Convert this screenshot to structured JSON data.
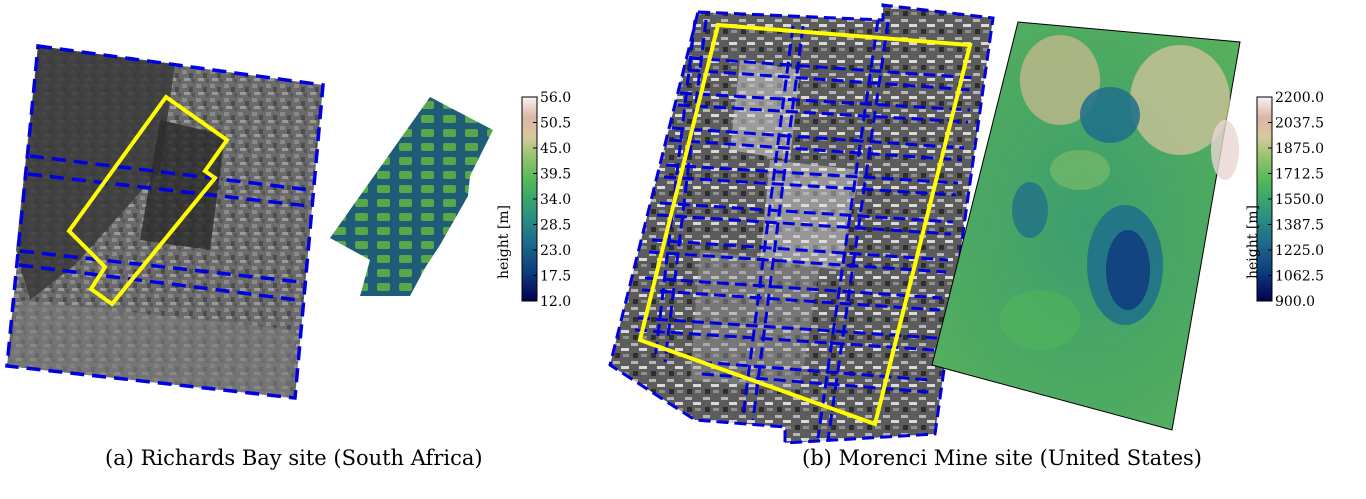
{
  "captions": {
    "a": "(a) Richards Bay site (South Africa)",
    "b": "(b) Morenci Mine site (United States)"
  },
  "colorbar_a": {
    "label": "height  [m]",
    "ticks": [
      "56.0",
      "50.5",
      "45.0",
      "39.5",
      "34.0",
      "28.5",
      "23.0",
      "17.5",
      "12.0"
    ],
    "range": [
      12.0,
      56.0
    ]
  },
  "colorbar_b": {
    "label": "height  [m]",
    "ticks": [
      "2200.0",
      "2037.5",
      "1875.0",
      "1712.5",
      "1550.0",
      "1387.5",
      "1225.0",
      "1062.5",
      "900.0"
    ],
    "range": [
      900.0,
      2200.0
    ]
  },
  "colors": {
    "footprint_outline": "#0000e0",
    "region_outline": "#ffff00",
    "colormap": [
      "#02004f",
      "#0f3f7f",
      "#1f6f8a",
      "#2f9a7a",
      "#4fb65a",
      "#8fc46a",
      "#d8c89a",
      "#d9b7a7",
      "#fbf2f2"
    ]
  }
}
